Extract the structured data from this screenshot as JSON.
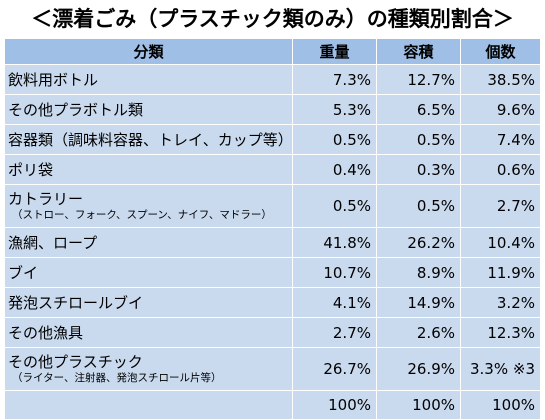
{
  "title": "＜漂着ごみ（プラスチック類のみ）の種類別割合＞",
  "headers": [
    "分類",
    "重量",
    "容積",
    "個数"
  ],
  "rows": [
    {
      "name": "飲料用ボトル",
      "sub": "",
      "weight": "7.3%",
      "volume": "12.7%",
      "count": "38.5%"
    },
    {
      "name": "その他プラボトル類",
      "sub": "",
      "weight": "5.3%",
      "volume": "6.5%",
      "count": "9.6%"
    },
    {
      "name": "容器類（調味料容器、トレイ、カップ等）",
      "sub": "",
      "weight": "0.5%",
      "volume": "0.5%",
      "count": "7.4%"
    },
    {
      "name": "ポリ袋",
      "sub": "",
      "weight": "0.4%",
      "volume": "0.3%",
      "count": "0.6%"
    },
    {
      "name": "カトラリー",
      "sub": "（ストロー、フォーク、スプーン、ナイフ、マドラー）",
      "weight": "0.5%",
      "volume": "0.5%",
      "count": "2.7%"
    },
    {
      "name": "漁網、ロープ",
      "sub": "",
      "weight": "41.8%",
      "volume": "26.2%",
      "count": "10.4%"
    },
    {
      "name": "ブイ",
      "sub": "",
      "weight": "10.7%",
      "volume": "8.9%",
      "count": "11.9%"
    },
    {
      "name": "発泡スチロールブイ",
      "sub": "",
      "weight": "4.1%",
      "volume": "14.9%",
      "count": "3.2%"
    },
    {
      "name": "その他漁具",
      "sub": "",
      "weight": "2.7%",
      "volume": "2.6%",
      "count": "12.3%"
    },
    {
      "name": "その他プラスチック",
      "sub": "（ライター、注射器、発泡スチロール片等）",
      "weight": "26.7%",
      "volume": "26.9%",
      "count": "3.3% ※3"
    }
  ],
  "total": {
    "name": "",
    "weight": "100%",
    "volume": "100%",
    "count": "100%"
  }
}
